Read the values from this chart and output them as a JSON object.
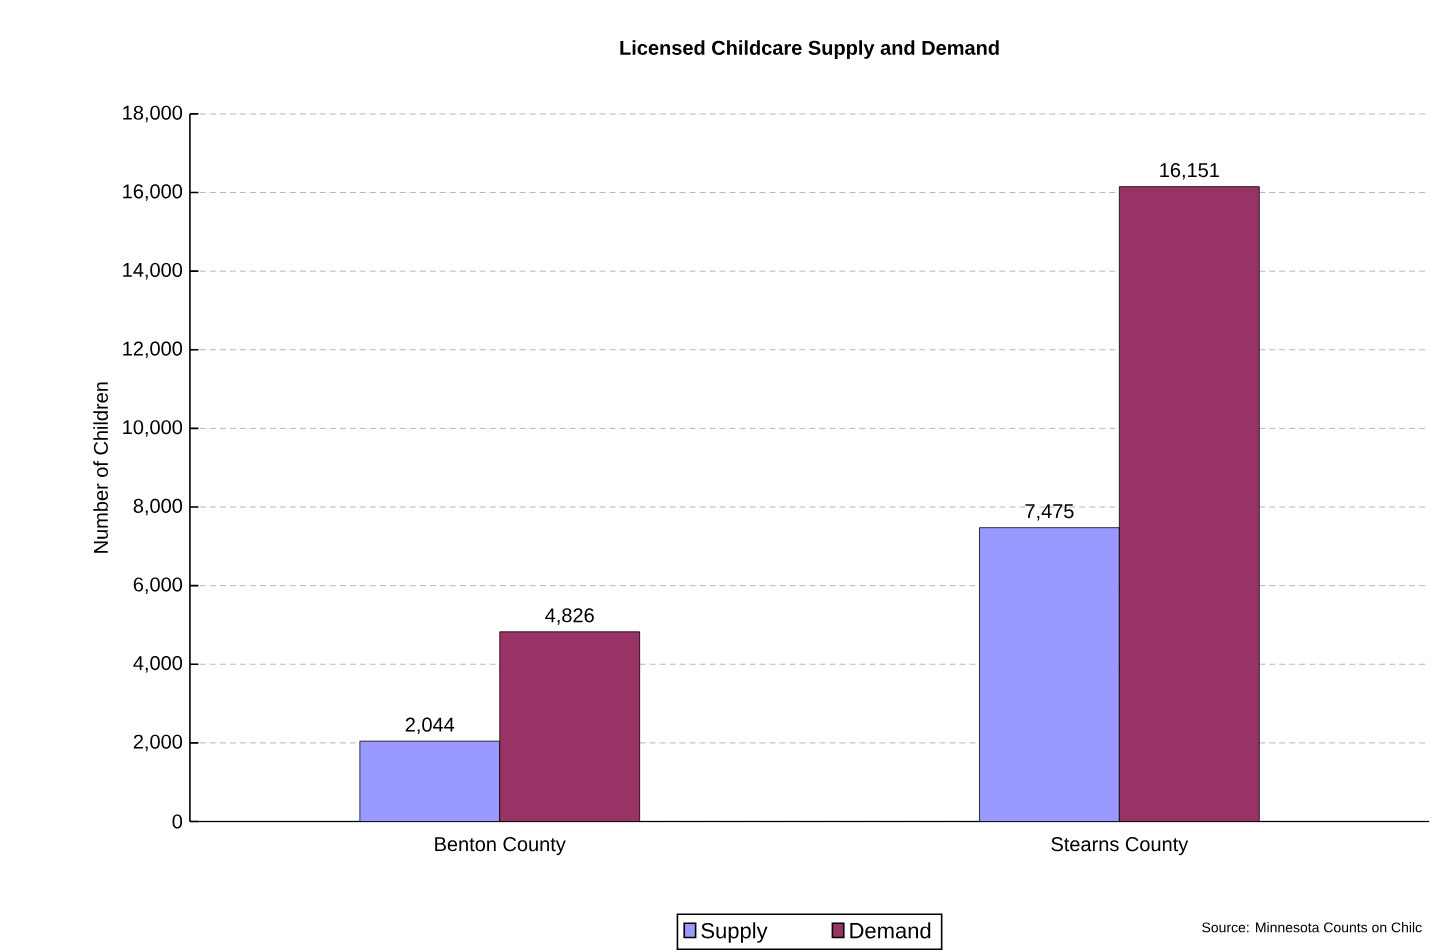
{
  "chart_data": {
    "type": "bar",
    "title": "Licensed Childcare Supply and Demand",
    "ylabel": "Number of Children",
    "categories": [
      "Benton County",
      "Stearns County"
    ],
    "series": [
      {
        "name": "Supply",
        "color": "#9999ff",
        "values": [
          2044,
          7475
        ],
        "value_labels": [
          "2,044",
          "7,475"
        ]
      },
      {
        "name": "Demand",
        "color": "#993366",
        "values": [
          4826,
          16151
        ],
        "value_labels": [
          "4,826",
          "16,151"
        ]
      }
    ],
    "ylim": [
      0,
      18000
    ],
    "yticks": [
      {
        "value": 0,
        "label": "0"
      },
      {
        "value": 2000,
        "label": "2,000"
      },
      {
        "value": 4000,
        "label": "4,000"
      },
      {
        "value": 6000,
        "label": "6,000"
      },
      {
        "value": 8000,
        "label": "8,000"
      },
      {
        "value": 10000,
        "label": "10,000"
      },
      {
        "value": 12000,
        "label": "12,000"
      },
      {
        "value": 14000,
        "label": "14,000"
      },
      {
        "value": 16000,
        "label": "16,000"
      },
      {
        "value": 18000,
        "label": "18,000"
      }
    ],
    "grid": "y",
    "legend": "bottom",
    "annotations": [
      "Source: Minnesota Counts on Chilc"
    ]
  }
}
